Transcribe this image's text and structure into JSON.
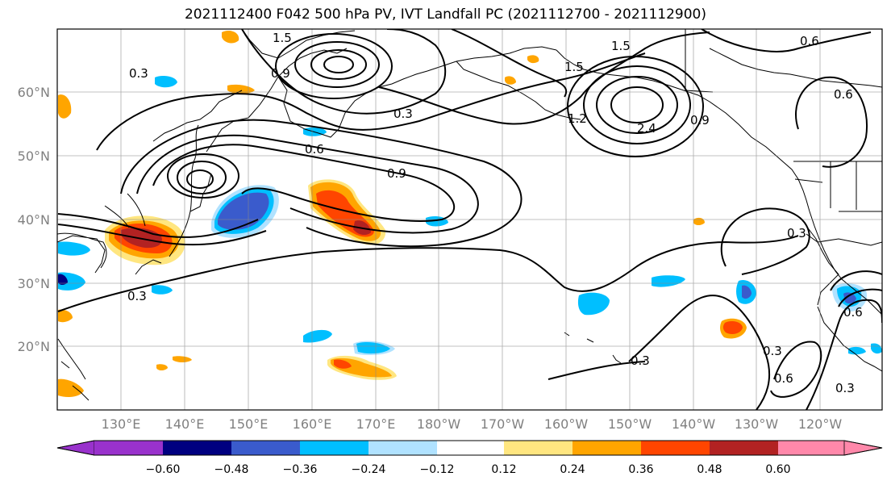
{
  "title": "2021112400 F042 500 hPa PV, IVT Landfall PC (2021112700 - 2021112900)",
  "lon_ticks": [
    "130°E",
    "140°E",
    "150°E",
    "160°E",
    "170°E",
    "180°W",
    "170°W",
    "160°W",
    "150°W",
    "140°W",
    "130°W",
    "120°W"
  ],
  "lat_ticks": [
    "60°N",
    "50°N",
    "40°N",
    "30°N",
    "20°N"
  ],
  "contour_labels": [
    "1.5",
    "1.5",
    "0.6",
    "0.3",
    "0.9",
    "1.5",
    "0.3",
    "0.6",
    "0.9",
    "1.2",
    "2.4",
    "0.9",
    "0.6",
    "0.3",
    "0.6",
    "0.3",
    "0.3",
    "0.6",
    "0.3",
    "0.3"
  ],
  "colorbar": {
    "ticks": [
      "−0.60",
      "−0.48",
      "−0.36",
      "−0.24",
      "−0.12",
      "0.12",
      "0.24",
      "0.36",
      "0.48",
      "0.60"
    ],
    "colors": [
      "#9932cc",
      "#000080",
      "#3a5bcc",
      "#00bfff",
      "#b0e2ff",
      "#ffffff",
      "#ffe680",
      "#ffa500",
      "#ff4500",
      "#b22222",
      "#ff88aa"
    ]
  }
}
